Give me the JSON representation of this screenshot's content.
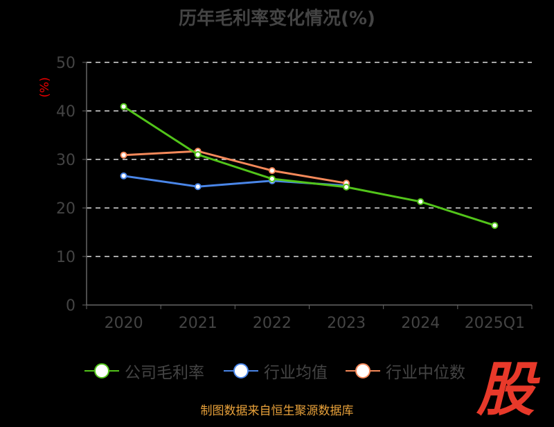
{
  "chart_data": {
    "type": "line",
    "title": "历年毛利率变化情况(%)",
    "ylabel": "(%)",
    "xlabel": "",
    "categories": [
      "2020",
      "2021",
      "2022",
      "2023",
      "2024",
      "2025Q1"
    ],
    "ylim": [
      0,
      50
    ],
    "yticks": [
      0,
      10,
      20,
      30,
      40,
      50
    ],
    "grid": true,
    "legend_position": "bottom",
    "series": [
      {
        "name": "公司毛利率",
        "color": "#52c41a",
        "values": [
          40.9,
          31.0,
          26.0,
          24.3,
          21.3,
          16.4
        ]
      },
      {
        "name": "行业均值",
        "color": "#4a86e8",
        "values": [
          26.6,
          24.4,
          25.6,
          24.6,
          null,
          null
        ]
      },
      {
        "name": "行业中位数",
        "color": "#f5895a",
        "values": [
          30.9,
          31.7,
          27.7,
          25.1,
          null,
          null
        ]
      }
    ]
  },
  "source": "制图数据来自恒生聚源数据库",
  "logo_text": "股"
}
